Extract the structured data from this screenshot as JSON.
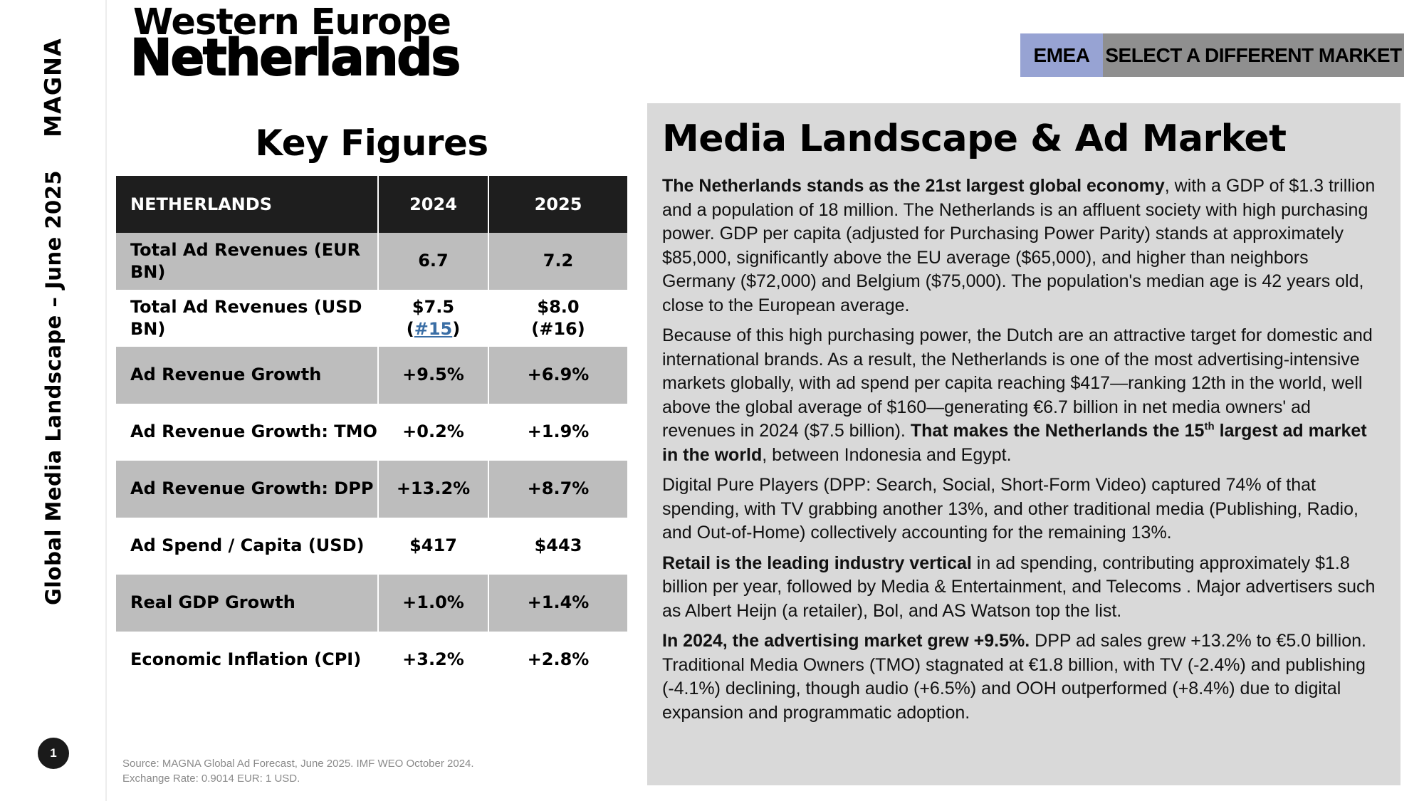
{
  "rail": {
    "logo": "MAGNA",
    "title": "Global Media Landscape – June 2025",
    "page_number": "1"
  },
  "header": {
    "region": "Western Europe",
    "country": "Netherlands"
  },
  "market_bar": {
    "region_label": "EMEA",
    "select_label": "SELECT A DIFFERENT MARKET"
  },
  "key_figures": {
    "title": "Key Figures",
    "columns": [
      "NETHERLANDS",
      "2024",
      "2025"
    ],
    "rows": [
      {
        "label": "Total Ad Revenues (EUR BN)",
        "v2024": "6.7",
        "v2025": "7.2"
      },
      {
        "label": "Total Ad Revenues (USD BN)",
        "v2024": "$7.5",
        "v2024_rank_open": "(",
        "v2024_rank": "#15",
        "v2024_rank_close": ")",
        "v2025": "$8.0",
        "v2025_rank": "(#16)"
      },
      {
        "label": "Ad Revenue Growth",
        "v2024": "+9.5%",
        "v2025": "+6.9%"
      },
      {
        "label": "Ad Revenue Growth: TMO",
        "v2024": "+0.2%",
        "v2025": "+1.9%"
      },
      {
        "label": "Ad Revenue Growth: DPP",
        "v2024": "+13.2%",
        "v2025": "+8.7%"
      },
      {
        "label": "Ad Spend / Capita (USD)",
        "v2024": "$417",
        "v2025": "$443"
      },
      {
        "label": "Real GDP Growth",
        "v2024": "+1.0%",
        "v2025": "+1.4%"
      },
      {
        "label": "Economic Inflation (CPI)",
        "v2024": "+3.2%",
        "v2025": "+2.8%"
      }
    ]
  },
  "source": {
    "line1": "Source: MAGNA Global Ad Forecast, June 2025. IMF WEO October 2024.",
    "line2": "Exchange Rate: 0.9014 EUR: 1 USD."
  },
  "panel": {
    "title": "Media Landscape & Ad Market",
    "p1_bold": "The Netherlands stands as the 21st largest global economy",
    "p1_rest": ", with a GDP of $1.3 trillion and a population of 18 million. The Netherlands is an affluent society with high purchasing power. GDP per capita (adjusted for Purchasing Power Parity) stands at approximately $85,000, significantly above the EU average ($65,000), and higher than neighbors Germany ($72,000) and Belgium ($75,000). The population's median age is 42 years old, close to the European average.",
    "p2_text": "Because of this high purchasing power, the Dutch are an attractive target for domestic and international brands. As a result, the Netherlands is one of the most advertising-intensive markets globally, with ad spend per capita reaching  $417—ranking 12th in the world, well above the global average of $160—generating €6.7 billion in net media owners' ad revenues in 2024 ($7.5 billion). ",
    "p2_bold1": "That makes the Netherlands the 15",
    "p2_sup": "th",
    "p2_bold2": " largest ad market in the world",
    "p2_end": ", between Indonesia and Egypt.",
    "p3": "Digital Pure Players (DPP: Search, Social, Short-Form Video) captured 74% of that spending, with TV  grabbing another 13%, and other traditional media (Publishing, Radio, and Out-of-Home) collectively accounting for the remaining 13%.",
    "p4_bold": "Retail is the leading industry vertical",
    "p4_rest": " in ad spending, contributing approximately $1.8 billion per year, followed by Media & Entertainment, and Telecoms . Major advertisers such as Albert Heijn (a retailer), Bol, and AS Watson top the list.",
    "p5_bold": "In 2024, the advertising market grew +9.5%.",
    "p5_rest": " DPP ad sales grew +13.2% to €5.0 billion. Traditional Media Owners (TMO) stagnated at €1.8 billion, with TV (-2.4%) and publishing (-4.1%) declining, though audio (+6.5%) and OOH outperformed (+8.4%) due to digital expansion and programmatic adoption."
  }
}
